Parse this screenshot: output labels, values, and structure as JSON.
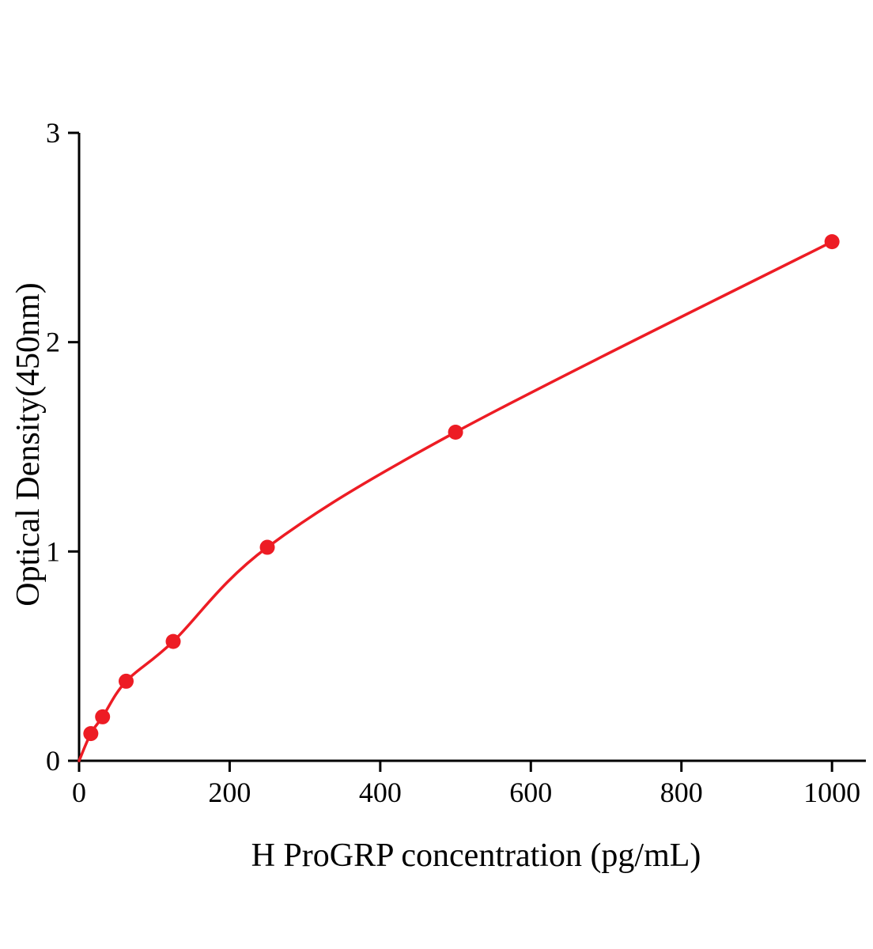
{
  "chart_data": {
    "type": "scatter",
    "title": "",
    "xlabel": "H ProGRP concentration (pg/mL)",
    "ylabel": "Optical Density(450nm)",
    "x": [
      15.6,
      31.2,
      62.5,
      125,
      250,
      500,
      1000
    ],
    "y": [
      0.13,
      0.21,
      0.38,
      0.57,
      1.02,
      1.57,
      2.48
    ],
    "curve_start": [
      0,
      0
    ],
    "xlim": [
      0,
      1045
    ],
    "ylim": [
      0,
      3
    ],
    "xticks": [
      0,
      200,
      400,
      600,
      800,
      1000
    ],
    "yticks": [
      0,
      1,
      2,
      3
    ],
    "grid": false,
    "legend": "none",
    "line_color": "#ed1c24",
    "marker_color": "#ed1c24",
    "axis_color": "#000000",
    "tick_label_color": "#000000"
  }
}
